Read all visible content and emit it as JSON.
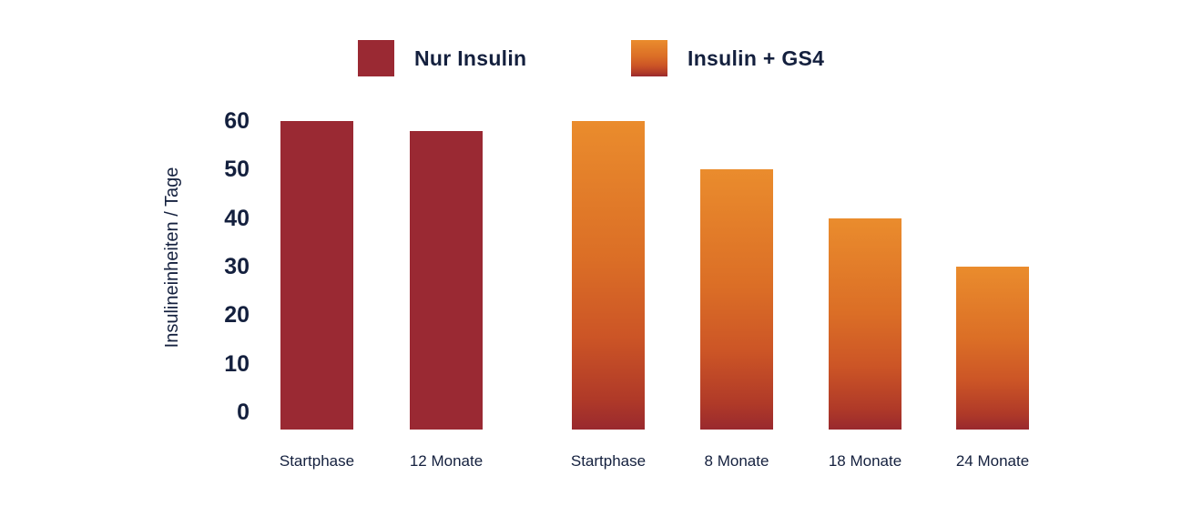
{
  "chart_data": {
    "type": "bar",
    "title": "",
    "xlabel": "",
    "ylabel": "Insulineinheiten / Tage",
    "ylim": [
      0,
      60
    ],
    "y_ticks": [
      60,
      50,
      40,
      30,
      20,
      10,
      0
    ],
    "grid": false,
    "legend_position": "top",
    "categories": [
      "Startphase",
      "12 Monate",
      "Startphase",
      "8 Monate",
      "18 Monate",
      "24 Monate"
    ],
    "series": [
      {
        "name": "Nur Insulin",
        "fill": {
          "type": "solid",
          "color": "#9A2933"
        },
        "values": [
          60,
          58,
          null,
          null,
          null,
          null
        ]
      },
      {
        "name": "Insulin + GS4",
        "fill": {
          "type": "gradient",
          "stops": [
            {
              "color": "#EA8C2D",
              "pos": "0%"
            },
            {
              "color": "#DB6E26",
              "pos": "45%"
            },
            {
              "color": "#CC5526",
              "pos": "70%"
            },
            {
              "color": "#B03A28",
              "pos": "90%"
            },
            {
              "color": "#99292E",
              "pos": "100%"
            }
          ]
        },
        "values": [
          null,
          null,
          60,
          50,
          40,
          30
        ]
      }
    ],
    "bars": [
      {
        "label": "Startphase",
        "value": 60,
        "series": 0
      },
      {
        "label": "12 Monate",
        "value": 58,
        "series": 0
      },
      {
        "label": "Startphase",
        "value": 60,
        "series": 1
      },
      {
        "label": "8 Monate",
        "value": 50,
        "series": 1
      },
      {
        "label": "18 Monate",
        "value": 40,
        "series": 1
      },
      {
        "label": "24 Monate",
        "value": 30,
        "series": 1
      }
    ]
  },
  "colors": {
    "text": "#14203E",
    "maroon": "#9A2933",
    "orange_top": "#EA8C2D",
    "orange_bottom": "#99292E",
    "background": "#FFFFFF"
  }
}
